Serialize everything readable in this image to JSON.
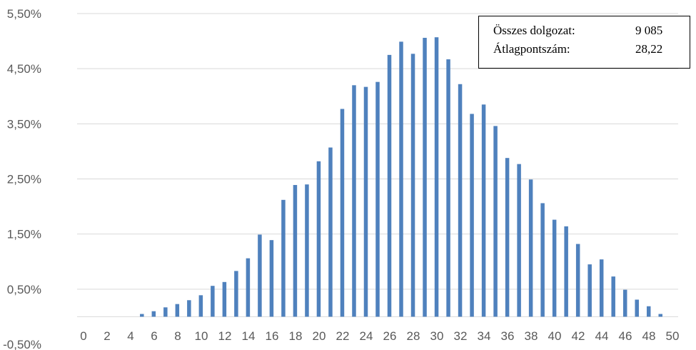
{
  "chart_data": {
    "type": "bar",
    "categories": [
      0,
      1,
      2,
      3,
      4,
      5,
      6,
      7,
      8,
      9,
      10,
      11,
      12,
      13,
      14,
      15,
      16,
      17,
      18,
      19,
      20,
      21,
      22,
      23,
      24,
      25,
      26,
      27,
      28,
      29,
      30,
      31,
      32,
      33,
      34,
      35,
      36,
      37,
      38,
      39,
      40,
      41,
      42,
      43,
      44,
      45,
      46,
      47,
      48,
      49,
      50
    ],
    "values": [
      0,
      0,
      0,
      0,
      0,
      0.05,
      0.1,
      0.17,
      0.23,
      0.3,
      0.39,
      0.56,
      0.63,
      0.83,
      1.06,
      1.49,
      1.39,
      2.12,
      2.39,
      2.4,
      2.82,
      3.07,
      3.77,
      4.2,
      4.17,
      4.26,
      4.75,
      4.99,
      4.77,
      5.06,
      5.07,
      4.67,
      4.22,
      3.68,
      3.85,
      3.46,
      2.88,
      2.77,
      2.49,
      2.06,
      1.76,
      1.64,
      1.32,
      0.95,
      1.04,
      0.73,
      0.49,
      0.31,
      0.19,
      0.05,
      0
    ],
    "x_tick_labels": [
      "0",
      "2",
      "4",
      "6",
      "8",
      "10",
      "12",
      "14",
      "16",
      "18",
      "20",
      "22",
      "24",
      "26",
      "28",
      "30",
      "32",
      "34",
      "36",
      "38",
      "40",
      "42",
      "44",
      "46",
      "48",
      "50"
    ],
    "y_tick_labels": [
      "-0,50%",
      "0,50%",
      "1,50%",
      "2,50%",
      "3,50%",
      "4,50%",
      "5,50%"
    ],
    "y_ticks": [
      -0.5,
      0.5,
      1.5,
      2.5,
      3.5,
      4.5,
      5.5
    ],
    "ylim": [
      -0.5,
      5.5
    ],
    "grid": true,
    "bar_color": "#4f81bd",
    "title": "",
    "xlabel": "",
    "ylabel": ""
  },
  "legend_box": {
    "rows": [
      {
        "label": "Összes dolgozat:",
        "value": "9 085"
      },
      {
        "label": "Átlagpontszám:",
        "value": "28,22"
      }
    ]
  }
}
